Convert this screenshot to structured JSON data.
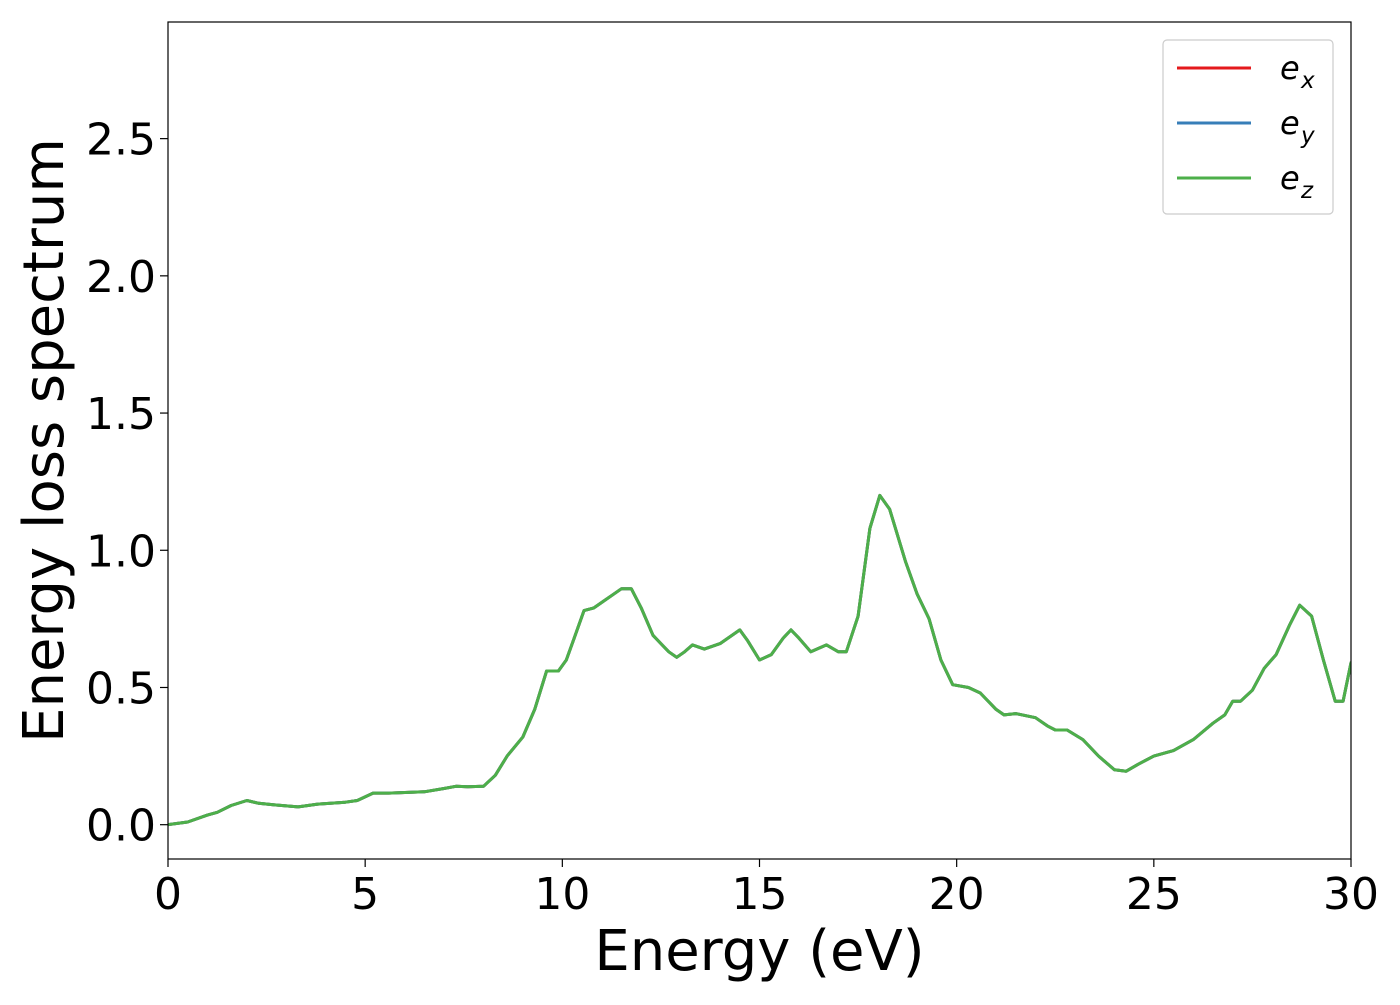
{
  "chart_data": {
    "type": "line",
    "title": "",
    "xlabel": "Energy (eV)",
    "ylabel": "Energy loss spectrum",
    "xlim": [
      0,
      30
    ],
    "ylim": [
      -0.125,
      2.925
    ],
    "xticks": [
      0,
      5,
      10,
      15,
      20,
      25,
      30
    ],
    "xtick_labels": [
      "0",
      "5",
      "10",
      "15",
      "20",
      "25",
      "30"
    ],
    "yticks": [
      0.0,
      0.5,
      1.0,
      1.5,
      2.0,
      2.5
    ],
    "ytick_labels": [
      "0.0",
      "0.5",
      "1.0",
      "1.5",
      "2.0",
      "2.5"
    ],
    "grid": false,
    "legend": {
      "position": "top-right",
      "entries": [
        {
          "base": "e",
          "sub": "x",
          "color": "#e41a1c"
        },
        {
          "base": "e",
          "sub": "y",
          "color": "#377eb8"
        },
        {
          "base": "e",
          "sub": "z",
          "color": "#4daf4a"
        }
      ]
    },
    "x": [
      0,
      0.5,
      1.0,
      1.25,
      1.6,
      2.0,
      2.3,
      2.7,
      3.3,
      3.8,
      4.5,
      4.8,
      5.2,
      5.6,
      6.5,
      7.0,
      7.3,
      7.6,
      8.0,
      8.3,
      8.6,
      9.0,
      9.3,
      9.6,
      9.9,
      10.1,
      10.3,
      10.55,
      10.8,
      11.0,
      11.3,
      11.5,
      11.75,
      12.0,
      12.3,
      12.5,
      12.7,
      12.9,
      13.1,
      13.3,
      13.6,
      14.0,
      14.5,
      14.7,
      15.0,
      15.3,
      15.6,
      15.8,
      16.0,
      16.3,
      16.7,
      17.0,
      17.2,
      17.5,
      17.8,
      18.05,
      18.3,
      18.7,
      19.0,
      19.3,
      19.6,
      19.9,
      20.3,
      20.6,
      21.0,
      21.2,
      21.5,
      22.0,
      22.3,
      22.5,
      22.8,
      23.2,
      23.6,
      24.0,
      24.3,
      24.6,
      25.0,
      25.5,
      26.0,
      26.5,
      26.8,
      27.0,
      27.2,
      27.5,
      27.8,
      28.1,
      28.45,
      28.7,
      29.0,
      29.3,
      29.6,
      29.8,
      30.0
    ],
    "series": [
      {
        "name": "e_x",
        "values": [
          0.0,
          0.01,
          0.035,
          0.045,
          0.07,
          0.088,
          0.078,
          0.072,
          0.065,
          0.075,
          0.082,
          0.088,
          0.115,
          0.115,
          0.12,
          0.132,
          0.14,
          0.138,
          0.14,
          0.18,
          0.25,
          0.32,
          0.42,
          0.56,
          0.56,
          0.6,
          0.68,
          0.78,
          0.79,
          0.81,
          0.84,
          0.86,
          0.86,
          0.79,
          0.69,
          0.66,
          0.63,
          0.61,
          0.63,
          0.655,
          0.64,
          0.66,
          0.71,
          0.67,
          0.6,
          0.62,
          0.68,
          0.71,
          0.68,
          0.63,
          0.655,
          0.63,
          0.63,
          0.76,
          1.08,
          1.2,
          1.15,
          0.96,
          0.84,
          0.75,
          0.6,
          0.51,
          0.5,
          0.48,
          0.42,
          0.4,
          0.405,
          0.39,
          0.36,
          0.345,
          0.345,
          0.31,
          0.25,
          0.2,
          0.195,
          0.22,
          0.25,
          0.27,
          0.31,
          0.37,
          0.4,
          0.45,
          0.45,
          0.49,
          0.57,
          0.62,
          0.73,
          0.8,
          0.76,
          0.6,
          0.45,
          0.45,
          0.59
        ]
      },
      {
        "name": "e_y",
        "values": [
          0.0,
          0.01,
          0.035,
          0.045,
          0.07,
          0.088,
          0.078,
          0.072,
          0.065,
          0.075,
          0.082,
          0.088,
          0.115,
          0.115,
          0.12,
          0.132,
          0.14,
          0.138,
          0.14,
          0.18,
          0.25,
          0.32,
          0.42,
          0.56,
          0.56,
          0.6,
          0.68,
          0.78,
          0.79,
          0.81,
          0.84,
          0.86,
          0.86,
          0.79,
          0.69,
          0.66,
          0.63,
          0.61,
          0.63,
          0.655,
          0.64,
          0.66,
          0.71,
          0.67,
          0.6,
          0.62,
          0.68,
          0.71,
          0.68,
          0.63,
          0.655,
          0.63,
          0.63,
          0.76,
          1.08,
          1.2,
          1.15,
          0.96,
          0.84,
          0.75,
          0.6,
          0.51,
          0.5,
          0.48,
          0.42,
          0.4,
          0.405,
          0.39,
          0.36,
          0.345,
          0.345,
          0.31,
          0.25,
          0.2,
          0.195,
          0.22,
          0.25,
          0.27,
          0.31,
          0.37,
          0.4,
          0.45,
          0.45,
          0.49,
          0.57,
          0.62,
          0.73,
          0.8,
          0.76,
          0.6,
          0.45,
          0.45,
          0.59
        ]
      },
      {
        "name": "e_z",
        "values": [
          0.0,
          0.01,
          0.035,
          0.045,
          0.07,
          0.088,
          0.078,
          0.072,
          0.065,
          0.075,
          0.082,
          0.088,
          0.115,
          0.115,
          0.12,
          0.132,
          0.14,
          0.138,
          0.14,
          0.18,
          0.25,
          0.32,
          0.42,
          0.56,
          0.56,
          0.6,
          0.68,
          0.78,
          0.79,
          0.81,
          0.84,
          0.86,
          0.86,
          0.79,
          0.69,
          0.66,
          0.63,
          0.61,
          0.63,
          0.655,
          0.64,
          0.66,
          0.71,
          0.67,
          0.6,
          0.62,
          0.68,
          0.71,
          0.68,
          0.63,
          0.655,
          0.63,
          0.63,
          0.76,
          1.08,
          1.2,
          1.15,
          0.96,
          0.84,
          0.75,
          0.6,
          0.51,
          0.5,
          0.48,
          0.42,
          0.4,
          0.405,
          0.39,
          0.36,
          0.345,
          0.345,
          0.31,
          0.25,
          0.2,
          0.195,
          0.22,
          0.25,
          0.27,
          0.31,
          0.37,
          0.4,
          0.45,
          0.45,
          0.49,
          0.57,
          0.62,
          0.73,
          0.8,
          0.76,
          0.6,
          0.45,
          0.45,
          0.59
        ]
      }
    ]
  }
}
